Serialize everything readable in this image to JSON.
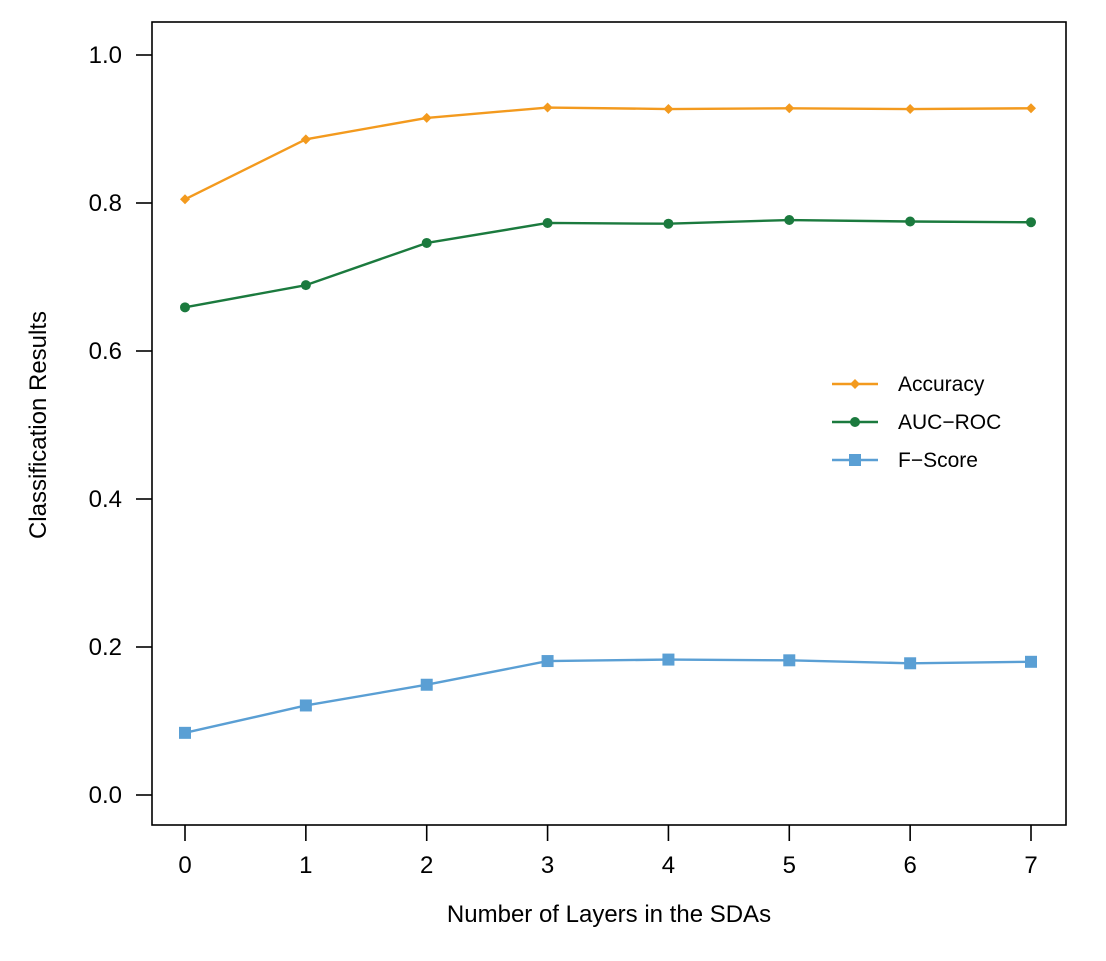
{
  "chart_data": {
    "type": "line",
    "xlabel": "Number of Layers in the SDAs",
    "ylabel": "Classification Results",
    "x": [
      0,
      1,
      2,
      3,
      4,
      5,
      6,
      7
    ],
    "x_tick_labels": [
      "0",
      "1",
      "2",
      "3",
      "4",
      "5",
      "6",
      "7"
    ],
    "y_tick_labels": [
      "0.0",
      "0.2",
      "0.4",
      "0.6",
      "0.8",
      "1.0"
    ],
    "y_ticks": [
      0.0,
      0.2,
      0.4,
      0.6,
      0.8,
      1.0
    ],
    "xlim": [
      0,
      7
    ],
    "ylim": [
      0.0,
      1.0
    ],
    "grid": false,
    "legend_position": "right",
    "series": [
      {
        "name": "Accuracy",
        "color": "#f39a1e",
        "marker": "diamond",
        "values": [
          0.805,
          0.886,
          0.915,
          0.929,
          0.927,
          0.928,
          0.927,
          0.928
        ]
      },
      {
        "name": "AUC−ROC",
        "color": "#1b7a3e",
        "marker": "circle",
        "values": [
          0.659,
          0.689,
          0.746,
          0.773,
          0.772,
          0.777,
          0.775,
          0.774
        ]
      },
      {
        "name": "F−Score",
        "color": "#5a9fd4",
        "marker": "square",
        "values": [
          0.084,
          0.121,
          0.149,
          0.181,
          0.183,
          0.182,
          0.178,
          0.18
        ]
      }
    ]
  }
}
